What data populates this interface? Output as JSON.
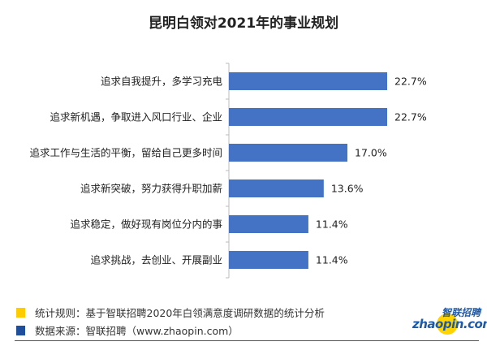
{
  "chart_data": {
    "type": "bar",
    "orientation": "horizontal",
    "title": "昆明白领对2021年的事业规划",
    "categories": [
      "追求自我提升，多学习充电",
      "追求新机遇，争取进入风口行业、企业",
      "追求工作与生活的平衡，留给自己更多时间",
      "追求新突破，努力获得升职加薪",
      "追求稳定，做好现有岗位分内的事",
      "追求挑战，去创业、开展副业"
    ],
    "values": [
      22.7,
      22.7,
      17.0,
      13.6,
      11.4,
      11.4
    ],
    "data_labels": [
      "22.7%",
      "22.7%",
      "17.0%",
      "13.6%",
      "11.4%",
      "11.4%"
    ],
    "xlim": [
      0,
      30
    ],
    "bar_color": "#4472c4",
    "grid": false
  },
  "legend": [
    {
      "text": "统计规则：基于智联招聘2020年白领满意度调研数据的统计分析",
      "color": "#ffcc00"
    },
    {
      "text": "数据来源：智联招聘（www.zhaopin.com）",
      "color": "#1f4e9c"
    }
  ],
  "logo": {
    "cn": "智联招聘",
    "en": "zhaopin.com"
  }
}
